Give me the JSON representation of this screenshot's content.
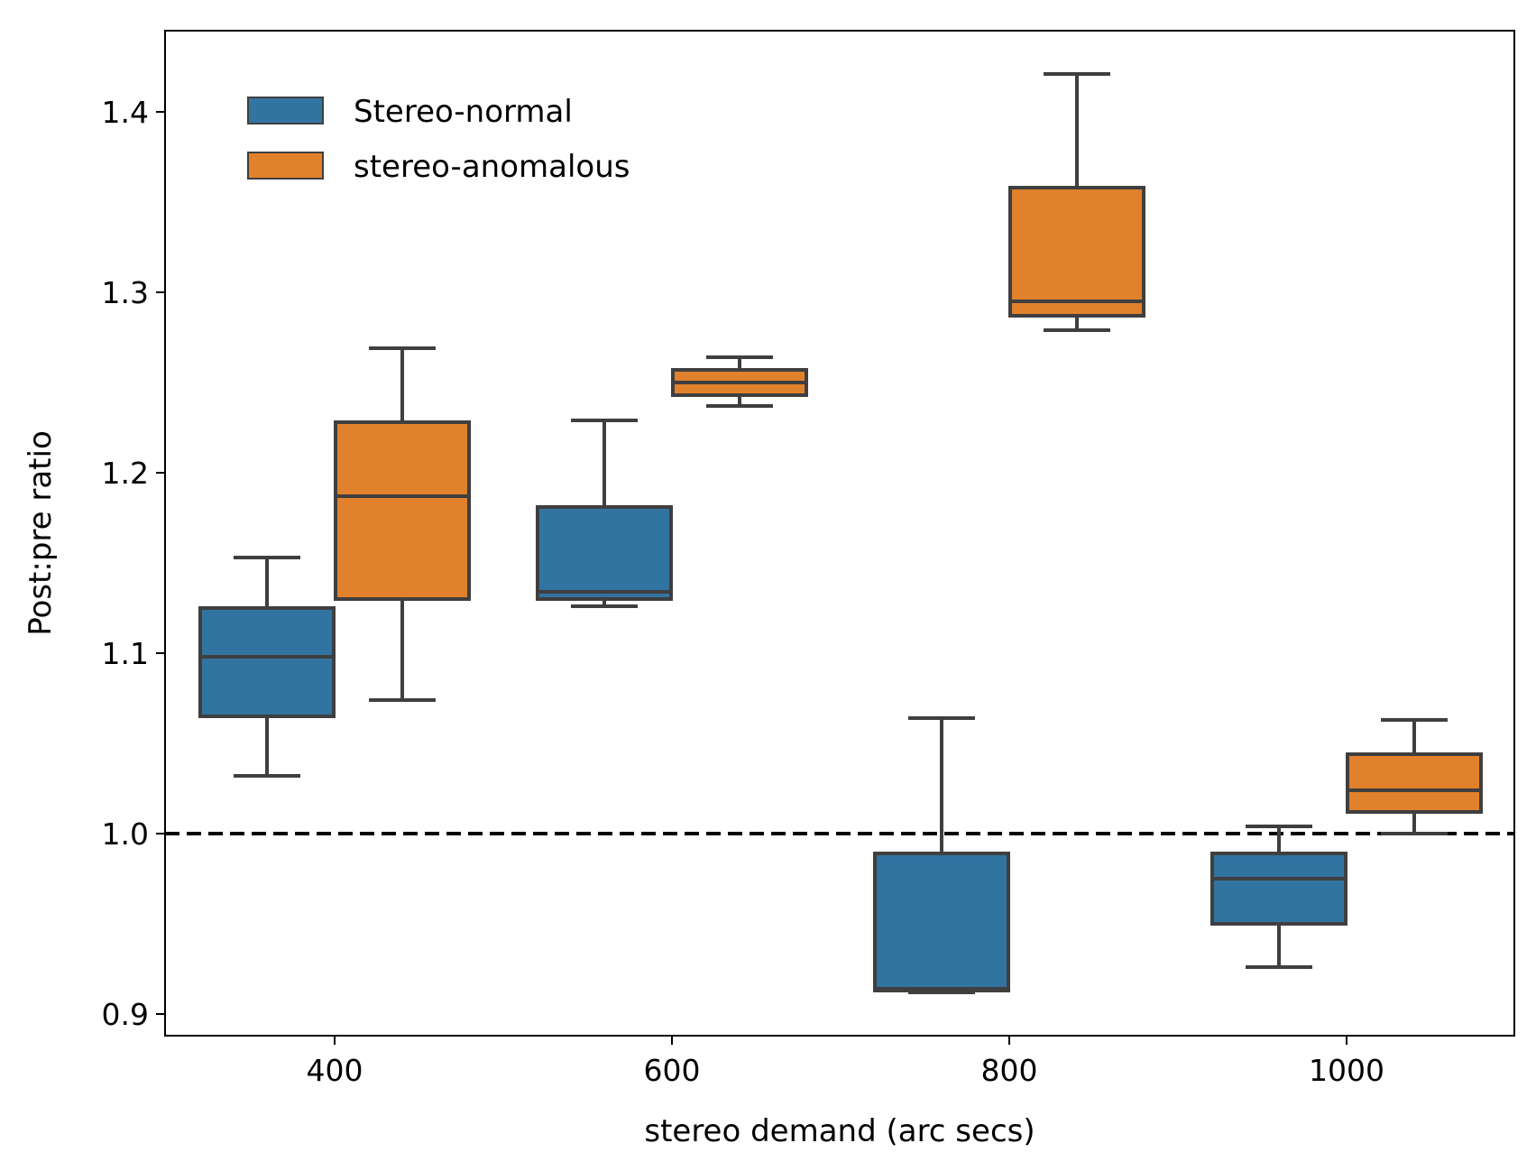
{
  "chart_data": {
    "type": "box",
    "xlabel": "stereo demand (arc secs)",
    "ylabel": "Post:pre ratio",
    "categories": [
      "400",
      "600",
      "800",
      "1000"
    ],
    "ylim": [
      0.888,
      1.445
    ],
    "yticks": [
      "0.9",
      "1.0",
      "1.1",
      "1.2",
      "1.3",
      "1.4"
    ],
    "reference_line": {
      "y": 1.0,
      "style": "dashed",
      "color": "#000000"
    },
    "legend": {
      "position": "top-left"
    },
    "series": [
      {
        "name": "Stereo-normal",
        "color": "#3274a1",
        "boxes": [
          {
            "category": "400",
            "whisker_low": 1.032,
            "q1": 1.065,
            "median": 1.098,
            "q3": 1.125,
            "whisker_high": 1.153
          },
          {
            "category": "600",
            "whisker_low": 1.126,
            "q1": 1.13,
            "median": 1.134,
            "q3": 1.181,
            "whisker_high": 1.229
          },
          {
            "category": "800",
            "whisker_low": 0.912,
            "q1": 0.913,
            "median": 0.914,
            "q3": 0.989,
            "whisker_high": 1.064
          },
          {
            "category": "1000",
            "whisker_low": 0.926,
            "q1": 0.95,
            "median": 0.975,
            "q3": 0.989,
            "whisker_high": 1.004
          }
        ]
      },
      {
        "name": "stereo-anomalous",
        "color": "#e1812c",
        "boxes": [
          {
            "category": "400",
            "whisker_low": 1.074,
            "q1": 1.13,
            "median": 1.187,
            "q3": 1.228,
            "whisker_high": 1.269
          },
          {
            "category": "600",
            "whisker_low": 1.237,
            "q1": 1.243,
            "median": 1.25,
            "q3": 1.257,
            "whisker_high": 1.264
          },
          {
            "category": "800",
            "whisker_low": 1.279,
            "q1": 1.287,
            "median": 1.295,
            "q3": 1.358,
            "whisker_high": 1.421
          },
          {
            "category": "1000",
            "whisker_low": 1.0,
            "q1": 1.012,
            "median": 1.024,
            "q3": 1.044,
            "whisker_high": 1.063
          }
        ]
      }
    ]
  }
}
